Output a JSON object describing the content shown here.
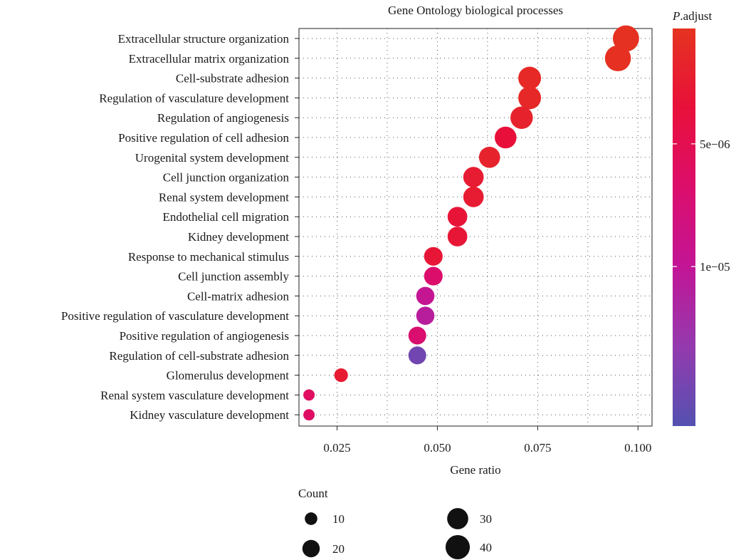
{
  "chart_data": {
    "type": "scatter",
    "title": "Gene Ontology biological processes",
    "xlabel": "Gene ratio",
    "ylabel": "",
    "xlim": [
      0.0155,
      0.1035
    ],
    "x_ticks": [
      0.025,
      0.05,
      0.075,
      0.1
    ],
    "x_tick_labels": [
      "0.025",
      "0.050",
      "0.075",
      "0.100"
    ],
    "grid": true,
    "categories": [
      "Extracellular structure organization",
      "Extracellular matrix organization",
      "Cell-substrate adhesion",
      "Regulation of vasculature development",
      "Regulation of angiogenesis",
      "Positive regulation of cell adhesion",
      "Urogenital system development",
      "Cell junction organization",
      "Renal system development",
      "Endothelial cell migration",
      "Kidney development",
      "Response to mechanical stimulus",
      "Cell junction assembly",
      "Cell-matrix adhesion",
      "Positive regulation of vasculature development",
      "Positive regulation of angiogenesis",
      "Regulation of cell-substrate adhesion",
      "Glomerulus development",
      "Renal system vasculature development",
      "Kidney vasculature development"
    ],
    "gene_ratio": [
      0.097,
      0.095,
      0.073,
      0.073,
      0.071,
      0.067,
      0.063,
      0.059,
      0.059,
      0.055,
      0.055,
      0.049,
      0.049,
      0.047,
      0.047,
      0.045,
      0.045,
      0.026,
      0.018,
      0.018
    ],
    "count": [
      47,
      46,
      35,
      35,
      34,
      32,
      30,
      28,
      28,
      26,
      26,
      23,
      23,
      22,
      22,
      21,
      21,
      12,
      8,
      8
    ],
    "p_adjust": [
      5e-07,
      6e-07,
      1.2e-06,
      1.3e-06,
      1.8e-06,
      3.5e-06,
      1.8e-06,
      2.5e-06,
      2.5e-06,
      3.2e-06,
      3e-06,
      3e-06,
      6.8e-06,
      9.8e-06,
      1.08e-05,
      7e-06,
      1.5e-05,
      2.5e-06,
      6e-06,
      6.3e-06
    ],
    "color_legend": {
      "title": "P.adjust",
      "domain": [
        3e-07,
        1.65e-05
      ],
      "ticks": [
        5e-06,
        1e-05
      ],
      "tick_labels": [
        "5e−06",
        "1e−05"
      ],
      "colors_low_to_high": [
        "#e53320",
        "#e8103a",
        "#dc0e6c",
        "#c21596",
        "#943aae",
        "#5451b1"
      ],
      "placement": "right"
    },
    "size_legend": {
      "title": "Count",
      "values": [
        10,
        20,
        30,
        40
      ],
      "labels": [
        "10",
        "20",
        "30",
        "40"
      ],
      "placement": "bottom"
    },
    "legend_dot_color": "#111111"
  }
}
